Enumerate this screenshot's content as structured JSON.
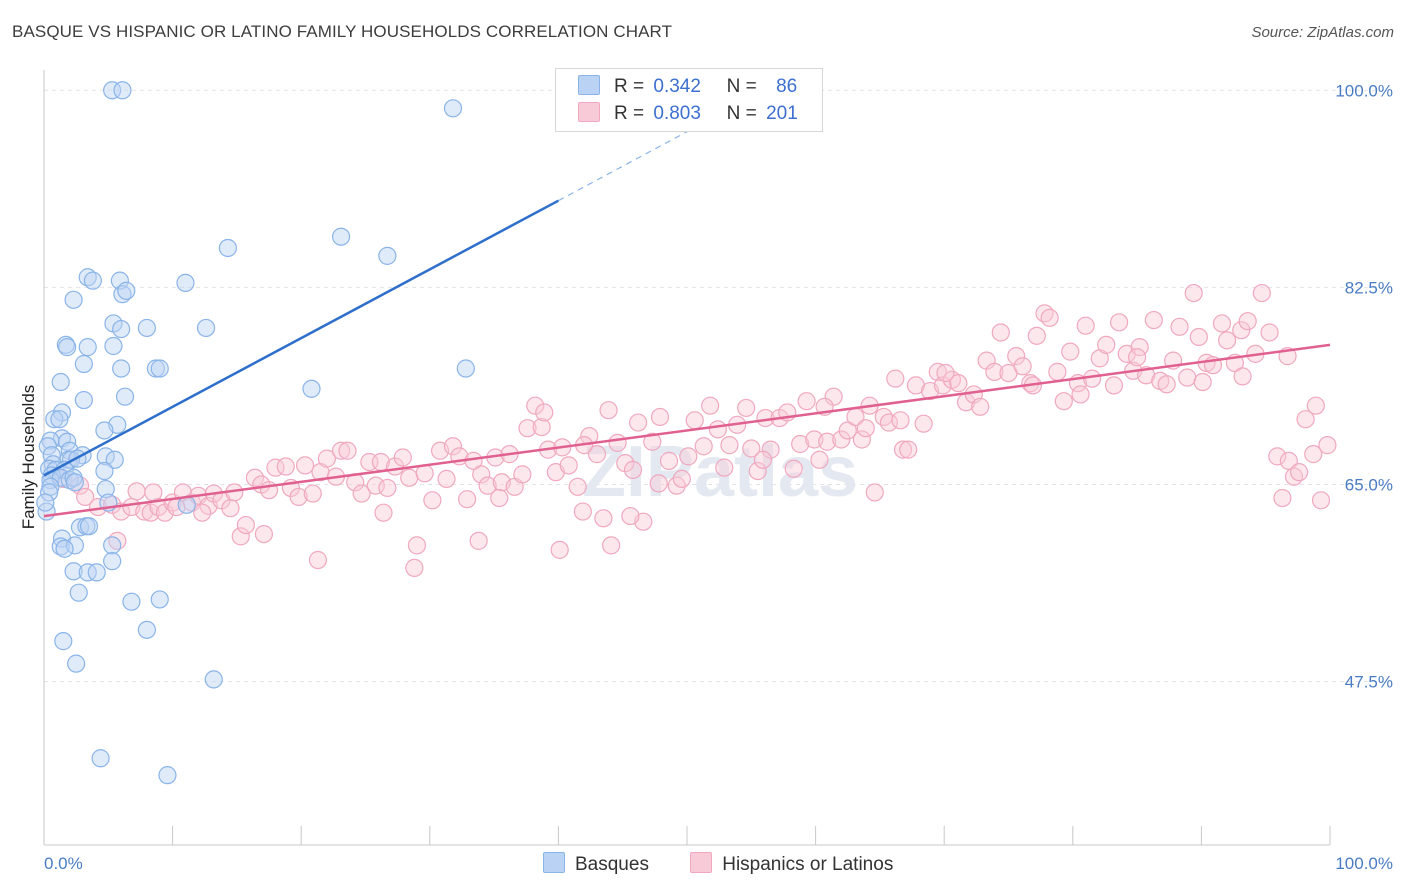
{
  "chart_data": {
    "type": "scatter",
    "title": "BASQUE VS HISPANIC OR LATINO FAMILY HOUSEHOLDS CORRELATION CHART",
    "source": "Source: ZipAtlas.com",
    "watermark": "ZIPatlas",
    "xlabel": "",
    "ylabel": "Family Households",
    "xlim": [
      0,
      100
    ],
    "ylim": [
      33,
      101.8
    ],
    "x_tick_labels": [
      "0.0%",
      "100.0%"
    ],
    "y_ticks": [
      {
        "value": 47.5,
        "label": "47.5%"
      },
      {
        "value": 65.0,
        "label": "65.0%"
      },
      {
        "value": 82.5,
        "label": "82.5%"
      },
      {
        "value": 100.0,
        "label": "100.0%"
      }
    ],
    "grid": true,
    "legend": {
      "position": "top-center",
      "r_label": "R =",
      "n_label": "N =",
      "entries": [
        {
          "name": "Basques",
          "r": "0.342",
          "n": "86"
        },
        {
          "name": "Hispanics or Latinos",
          "r": "0.803",
          "n": "201"
        }
      ]
    },
    "series": [
      {
        "name": "Basques",
        "color": "#8ab4e8",
        "fill": "#bad2f3",
        "line_color": "#2e6fcc",
        "trend": {
          "x0": 0,
          "y0": 65.8,
          "x1": 40,
          "y1": 90.2,
          "dash_x1": 57,
          "dash_y1": 100.6
        },
        "points": [
          [
            5.3,
            100.0
          ],
          [
            6.1,
            100.0
          ],
          [
            31.8,
            98.4
          ],
          [
            14.3,
            86.0
          ],
          [
            23.1,
            87.0
          ],
          [
            26.7,
            85.3
          ],
          [
            3.4,
            83.4
          ],
          [
            3.8,
            83.1
          ],
          [
            5.9,
            83.1
          ],
          [
            11.0,
            82.9
          ],
          [
            6.1,
            81.9
          ],
          [
            6.4,
            82.2
          ],
          [
            2.3,
            81.4
          ],
          [
            5.4,
            79.3
          ],
          [
            8.0,
            78.9
          ],
          [
            12.6,
            78.9
          ],
          [
            6.0,
            78.8
          ],
          [
            1.7,
            77.4
          ],
          [
            1.8,
            77.2
          ],
          [
            3.4,
            77.2
          ],
          [
            5.4,
            77.3
          ],
          [
            3.1,
            75.7
          ],
          [
            6.0,
            75.3
          ],
          [
            8.7,
            75.3
          ],
          [
            9.0,
            75.3
          ],
          [
            32.8,
            75.3
          ],
          [
            1.3,
            74.1
          ],
          [
            20.8,
            73.5
          ],
          [
            6.3,
            72.8
          ],
          [
            3.1,
            72.5
          ],
          [
            1.4,
            71.4
          ],
          [
            0.8,
            70.8
          ],
          [
            1.2,
            70.8
          ],
          [
            5.7,
            70.3
          ],
          [
            4.7,
            69.8
          ],
          [
            1.4,
            69.1
          ],
          [
            0.5,
            68.9
          ],
          [
            1.8,
            68.8
          ],
          [
            0.3,
            68.4
          ],
          [
            2.0,
            68.0
          ],
          [
            0.6,
            67.6
          ],
          [
            1.9,
            67.2
          ],
          [
            3.0,
            67.6
          ],
          [
            4.8,
            67.5
          ],
          [
            5.5,
            67.2
          ],
          [
            2.1,
            67.2
          ],
          [
            0.7,
            66.8
          ],
          [
            2.6,
            67.3
          ],
          [
            0.4,
            66.4
          ],
          [
            0.9,
            66.3
          ],
          [
            1.6,
            66.3
          ],
          [
            4.7,
            66.2
          ],
          [
            0.6,
            65.8
          ],
          [
            0.5,
            65.4
          ],
          [
            1.3,
            65.6
          ],
          [
            2.0,
            65.4
          ],
          [
            2.3,
            65.6
          ],
          [
            0.5,
            64.8
          ],
          [
            2.4,
            65.2
          ],
          [
            4.8,
            64.6
          ],
          [
            0.4,
            64.3
          ],
          [
            5.0,
            63.4
          ],
          [
            11.1,
            63.2
          ],
          [
            0.2,
            62.6
          ],
          [
            2.8,
            61.2
          ],
          [
            3.3,
            61.3
          ],
          [
            3.5,
            61.3
          ],
          [
            1.4,
            60.2
          ],
          [
            1.3,
            59.5
          ],
          [
            2.4,
            59.6
          ],
          [
            5.3,
            59.6
          ],
          [
            1.6,
            59.3
          ],
          [
            5.3,
            58.2
          ],
          [
            2.3,
            57.3
          ],
          [
            3.4,
            57.2
          ],
          [
            4.1,
            57.2
          ],
          [
            2.7,
            55.4
          ],
          [
            9.0,
            54.8
          ],
          [
            6.8,
            54.6
          ],
          [
            8.0,
            52.1
          ],
          [
            1.5,
            51.1
          ],
          [
            2.5,
            49.1
          ],
          [
            13.2,
            47.7
          ],
          [
            4.4,
            40.7
          ],
          [
            9.6,
            39.2
          ],
          [
            0.1,
            63.4
          ]
        ]
      },
      {
        "name": "Hispanics or Latinos",
        "color": "#f0a8bf",
        "fill": "#f8cad8",
        "line_color": "#e0608f",
        "trend": {
          "x0": 0,
          "y0": 62.2,
          "x1": 100,
          "y1": 77.4
        },
        "points": [
          [
            1.5,
            65.5
          ],
          [
            2.8,
            64.9
          ],
          [
            3.2,
            63.9
          ],
          [
            4.2,
            63.0
          ],
          [
            5.3,
            63.2
          ],
          [
            6.0,
            62.6
          ],
          [
            6.8,
            63.0
          ],
          [
            7.2,
            64.4
          ],
          [
            7.8,
            62.6
          ],
          [
            8.3,
            62.5
          ],
          [
            8.5,
            64.3
          ],
          [
            8.9,
            63.0
          ],
          [
            9.4,
            62.5
          ],
          [
            10.0,
            63.4
          ],
          [
            10.3,
            63.0
          ],
          [
            10.8,
            64.3
          ],
          [
            11.5,
            63.4
          ],
          [
            12.0,
            64.0
          ],
          [
            12.8,
            63.1
          ],
          [
            13.2,
            64.2
          ],
          [
            13.8,
            63.6
          ],
          [
            14.5,
            62.9
          ],
          [
            14.8,
            64.3
          ],
          [
            15.3,
            60.4
          ],
          [
            15.7,
            61.4
          ],
          [
            16.4,
            65.6
          ],
          [
            16.9,
            65.0
          ],
          [
            17.5,
            64.5
          ],
          [
            18.0,
            66.5
          ],
          [
            18.8,
            66.6
          ],
          [
            19.2,
            64.7
          ],
          [
            19.8,
            63.9
          ],
          [
            20.3,
            66.7
          ],
          [
            20.9,
            64.2
          ],
          [
            21.5,
            66.1
          ],
          [
            22.0,
            67.3
          ],
          [
            22.7,
            65.7
          ],
          [
            23.1,
            68.0
          ],
          [
            23.6,
            68.0
          ],
          [
            24.2,
            65.2
          ],
          [
            24.7,
            64.2
          ],
          [
            25.3,
            67.0
          ],
          [
            25.8,
            64.9
          ],
          [
            26.2,
            67.0
          ],
          [
            26.7,
            64.7
          ],
          [
            27.3,
            66.6
          ],
          [
            27.9,
            67.4
          ],
          [
            28.4,
            65.6
          ],
          [
            29.0,
            59.6
          ],
          [
            29.6,
            66.0
          ],
          [
            30.2,
            63.6
          ],
          [
            30.8,
            68.0
          ],
          [
            31.3,
            65.5
          ],
          [
            31.8,
            68.4
          ],
          [
            32.3,
            67.5
          ],
          [
            32.9,
            63.7
          ],
          [
            33.4,
            67.1
          ],
          [
            34.0,
            65.9
          ],
          [
            34.5,
            64.9
          ],
          [
            35.1,
            67.4
          ],
          [
            35.6,
            65.2
          ],
          [
            36.2,
            67.7
          ],
          [
            36.6,
            64.8
          ],
          [
            37.2,
            65.9
          ],
          [
            37.6,
            70.0
          ],
          [
            38.2,
            72.0
          ],
          [
            38.7,
            70.1
          ],
          [
            39.2,
            68.1
          ],
          [
            39.8,
            66.1
          ],
          [
            40.3,
            68.3
          ],
          [
            40.8,
            66.7
          ],
          [
            41.5,
            64.8
          ],
          [
            41.9,
            62.6
          ],
          [
            42.4,
            69.3
          ],
          [
            43.0,
            67.7
          ],
          [
            43.5,
            62.0
          ],
          [
            43.9,
            71.6
          ],
          [
            44.6,
            68.7
          ],
          [
            45.2,
            66.9
          ],
          [
            45.8,
            66.3
          ],
          [
            46.2,
            70.5
          ],
          [
            46.6,
            61.7
          ],
          [
            47.3,
            68.8
          ],
          [
            47.8,
            65.1
          ],
          [
            48.6,
            67.1
          ],
          [
            49.2,
            64.9
          ],
          [
            49.6,
            65.5
          ],
          [
            50.1,
            67.5
          ],
          [
            50.6,
            70.7
          ],
          [
            51.3,
            68.4
          ],
          [
            51.8,
            72.0
          ],
          [
            52.4,
            69.9
          ],
          [
            52.9,
            66.5
          ],
          [
            53.3,
            68.5
          ],
          [
            53.9,
            70.3
          ],
          [
            54.6,
            71.8
          ],
          [
            55.0,
            68.2
          ],
          [
            55.5,
            66.2
          ],
          [
            56.1,
            70.9
          ],
          [
            56.5,
            68.1
          ],
          [
            57.2,
            70.9
          ],
          [
            57.8,
            71.4
          ],
          [
            58.3,
            66.4
          ],
          [
            58.8,
            68.6
          ],
          [
            59.3,
            72.4
          ],
          [
            59.9,
            69.0
          ],
          [
            60.3,
            67.2
          ],
          [
            60.9,
            68.8
          ],
          [
            61.4,
            72.8
          ],
          [
            62.0,
            69.0
          ],
          [
            62.5,
            69.8
          ],
          [
            63.1,
            71.0
          ],
          [
            63.6,
            69.0
          ],
          [
            64.2,
            72.0
          ],
          [
            64.6,
            64.3
          ],
          [
            65.3,
            71.0
          ],
          [
            65.7,
            70.5
          ],
          [
            66.2,
            74.4
          ],
          [
            66.8,
            68.1
          ],
          [
            67.2,
            68.1
          ],
          [
            67.8,
            73.8
          ],
          [
            68.4,
            70.4
          ],
          [
            68.9,
            73.3
          ],
          [
            69.5,
            75.0
          ],
          [
            69.9,
            73.8
          ],
          [
            70.6,
            74.3
          ],
          [
            71.1,
            74.0
          ],
          [
            71.7,
            72.3
          ],
          [
            72.3,
            73.0
          ],
          [
            72.8,
            71.9
          ],
          [
            73.3,
            76.0
          ],
          [
            73.9,
            75.0
          ],
          [
            74.4,
            78.5
          ],
          [
            75.0,
            74.9
          ],
          [
            75.6,
            76.4
          ],
          [
            76.1,
            75.5
          ],
          [
            76.7,
            74.0
          ],
          [
            77.2,
            78.2
          ],
          [
            77.8,
            80.2
          ],
          [
            78.2,
            79.8
          ],
          [
            78.8,
            75.0
          ],
          [
            79.3,
            72.4
          ],
          [
            79.8,
            76.8
          ],
          [
            80.4,
            74.0
          ],
          [
            81.0,
            79.1
          ],
          [
            81.5,
            74.4
          ],
          [
            82.1,
            76.2
          ],
          [
            82.6,
            77.4
          ],
          [
            83.2,
            73.8
          ],
          [
            83.6,
            79.4
          ],
          [
            84.2,
            76.6
          ],
          [
            84.7,
            75.1
          ],
          [
            85.2,
            77.2
          ],
          [
            85.7,
            74.7
          ],
          [
            86.3,
            79.6
          ],
          [
            86.8,
            74.2
          ],
          [
            87.3,
            73.9
          ],
          [
            87.8,
            76.0
          ],
          [
            88.3,
            79.0
          ],
          [
            88.9,
            74.5
          ],
          [
            89.4,
            82.0
          ],
          [
            89.8,
            78.1
          ],
          [
            90.4,
            75.8
          ],
          [
            90.9,
            75.6
          ],
          [
            91.6,
            79.3
          ],
          [
            92.0,
            77.8
          ],
          [
            92.6,
            75.8
          ],
          [
            93.1,
            78.7
          ],
          [
            93.6,
            79.5
          ],
          [
            94.2,
            76.6
          ],
          [
            94.7,
            82.0
          ],
          [
            95.3,
            78.5
          ],
          [
            95.9,
            67.5
          ],
          [
            96.3,
            63.8
          ],
          [
            96.8,
            67.1
          ],
          [
            97.2,
            65.7
          ],
          [
            97.6,
            66.1
          ],
          [
            98.1,
            70.8
          ],
          [
            98.7,
            67.7
          ],
          [
            99.3,
            63.6
          ],
          [
            99.8,
            68.5
          ],
          [
            5.7,
            60.0
          ],
          [
            12.3,
            62.5
          ],
          [
            17.1,
            60.6
          ],
          [
            21.3,
            58.3
          ],
          [
            26.4,
            62.5
          ],
          [
            28.8,
            57.6
          ],
          [
            33.8,
            60.0
          ],
          [
            35.4,
            63.8
          ],
          [
            42.0,
            68.5
          ],
          [
            44.1,
            59.6
          ],
          [
            47.9,
            71.0
          ],
          [
            55.9,
            67.2
          ],
          [
            60.7,
            71.9
          ],
          [
            63.9,
            70.0
          ],
          [
            66.6,
            70.7
          ],
          [
            70.1,
            74.9
          ],
          [
            76.9,
            73.8
          ],
          [
            80.6,
            73.0
          ],
          [
            85.0,
            76.3
          ],
          [
            90.1,
            74.1
          ],
          [
            93.2,
            74.6
          ],
          [
            96.7,
            76.4
          ],
          [
            98.9,
            72.0
          ],
          [
            38.9,
            71.4
          ],
          [
            40.1,
            59.2
          ],
          [
            45.6,
            62.2
          ]
        ]
      }
    ]
  }
}
